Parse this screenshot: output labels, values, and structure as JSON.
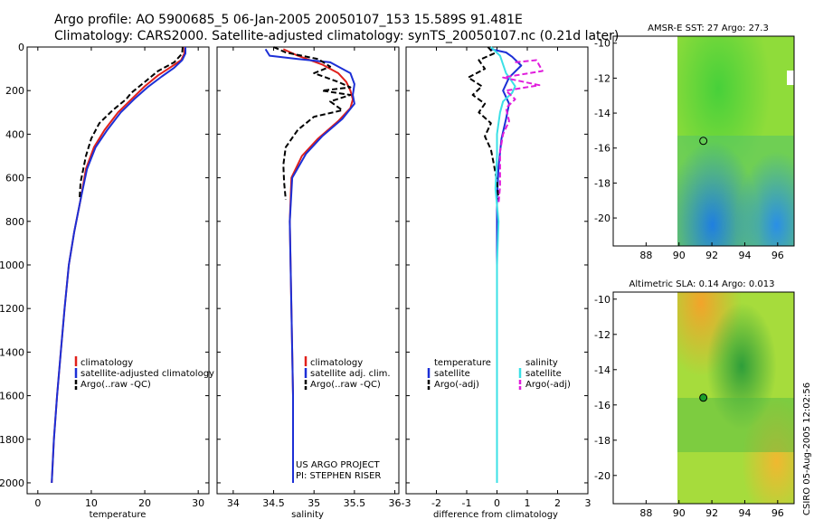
{
  "title": {
    "line1": "Argo profile: AO 5900685_5 06-Jan-2005 20050107_153 15.589S 91.481E",
    "line2": "Climatology: CARS2000. Satellite-adjusted climatology: synTS_20050107.nc (0.21d later)"
  },
  "credit": "CSIRO 05-Aug-2005 12:02:56",
  "colors": {
    "red": "#e0201b",
    "blue": "#1c2fd6",
    "black": "#000000",
    "cyan": "#3be0e6",
    "magenta": "#e01ddc"
  },
  "chart_data": [
    {
      "type": "line",
      "name": "temperature-profile",
      "xlabel": "temperature",
      "xlim": [
        -2,
        32
      ],
      "ylim": [
        0,
        2050
      ],
      "y_inverted": true,
      "xticks": [
        0,
        10,
        20,
        30
      ],
      "yticks": [
        0,
        200,
        400,
        600,
        800,
        1000,
        1200,
        1400,
        1600,
        1800,
        2000
      ],
      "series": [
        {
          "name": "climatology",
          "color": "red",
          "style": "solid",
          "points": [
            [
              27.5,
              0
            ],
            [
              27.4,
              30
            ],
            [
              26.8,
              60
            ],
            [
              25,
              90
            ],
            [
              22.5,
              130
            ],
            [
              20,
              180
            ],
            [
              17.5,
              240
            ],
            [
              15,
              300
            ],
            [
              12.5,
              380
            ],
            [
              10.5,
              460
            ],
            [
              9,
              560
            ],
            [
              8,
              700
            ],
            [
              6.8,
              850
            ],
            [
              5.8,
              1000
            ],
            [
              5,
              1200
            ],
            [
              4.3,
              1400
            ],
            [
              3.6,
              1600
            ],
            [
              3,
              1800
            ],
            [
              2.6,
              2000
            ]
          ]
        },
        {
          "name": "satellite-adjusted climatology",
          "color": "blue",
          "style": "solid",
          "points": [
            [
              27.6,
              0
            ],
            [
              27.6,
              30
            ],
            [
              27,
              60
            ],
            [
              25.5,
              95
            ],
            [
              23.2,
              135
            ],
            [
              20.5,
              185
            ],
            [
              18,
              240
            ],
            [
              15.5,
              300
            ],
            [
              13,
              380
            ],
            [
              10.8,
              460
            ],
            [
              9.2,
              560
            ],
            [
              8,
              700
            ],
            [
              6.8,
              850
            ],
            [
              5.8,
              1000
            ],
            [
              5,
              1200
            ],
            [
              4.3,
              1400
            ],
            [
              3.6,
              1600
            ],
            [
              3,
              1800
            ],
            [
              2.6,
              2000
            ]
          ]
        },
        {
          "name": "Argo(..raw -QC)",
          "color": "black",
          "style": "dashed",
          "points": [
            [
              27.1,
              0
            ],
            [
              27,
              30
            ],
            [
              25.5,
              70
            ],
            [
              22.5,
              110
            ],
            [
              20,
              160
            ],
            [
              17.5,
              210
            ],
            [
              16.5,
              240
            ],
            [
              14,
              290
            ],
            [
              11.5,
              350
            ],
            [
              10,
              420
            ],
            [
              9,
              500
            ],
            [
              8.5,
              560
            ],
            [
              8,
              620
            ],
            [
              7.8,
              700
            ]
          ]
        }
      ],
      "legend": {
        "position": "lower-center",
        "entries": [
          "climatology",
          "satellite-adjusted climatology",
          "Argo(..raw -QC)"
        ]
      }
    },
    {
      "type": "line",
      "name": "salinity-profile",
      "xlabel": "salinity",
      "xlim": [
        33.8,
        36.05
      ],
      "ylim": [
        0,
        2050
      ],
      "y_inverted": true,
      "xticks": [
        34,
        34.5,
        35,
        35.5,
        36
      ],
      "series": [
        {
          "name": "climatology",
          "color": "red",
          "style": "solid",
          "points": [
            [
              34.62,
              10
            ],
            [
              34.8,
              40
            ],
            [
              35.1,
              80
            ],
            [
              35.3,
              120
            ],
            [
              35.4,
              160
            ],
            [
              35.45,
              200
            ],
            [
              35.48,
              240
            ],
            [
              35.45,
              280
            ],
            [
              35.3,
              340
            ],
            [
              35.05,
              420
            ],
            [
              34.85,
              500
            ],
            [
              34.72,
              600
            ],
            [
              34.7,
              800
            ],
            [
              34.71,
              1000
            ],
            [
              34.72,
              1200
            ],
            [
              34.73,
              1400
            ],
            [
              34.74,
              1600
            ],
            [
              34.74,
              1800
            ],
            [
              34.74,
              2000
            ]
          ]
        },
        {
          "name": "satellite adj. clim.",
          "color": "blue",
          "style": "solid",
          "points": [
            [
              34.4,
              10
            ],
            [
              34.45,
              40
            ],
            [
              34.8,
              55
            ],
            [
              35.2,
              70
            ],
            [
              35.45,
              120
            ],
            [
              35.5,
              170
            ],
            [
              35.48,
              220
            ],
            [
              35.5,
              260
            ],
            [
              35.35,
              330
            ],
            [
              35.1,
              410
            ],
            [
              34.9,
              490
            ],
            [
              34.73,
              600
            ],
            [
              34.7,
              800
            ],
            [
              34.71,
              1000
            ],
            [
              34.72,
              1200
            ],
            [
              34.73,
              1400
            ],
            [
              34.74,
              1600
            ],
            [
              34.74,
              1800
            ],
            [
              34.74,
              2000
            ]
          ]
        },
        {
          "name": "Argo(..raw -QC)",
          "color": "black",
          "style": "dashed",
          "points": [
            [
              34.5,
              0
            ],
            [
              34.65,
              25
            ],
            [
              35.05,
              55
            ],
            [
              35.2,
              90
            ],
            [
              35.0,
              120
            ],
            [
              35.3,
              160
            ],
            [
              35.45,
              185
            ],
            [
              35.1,
              200
            ],
            [
              35.45,
              220
            ],
            [
              35.2,
              250
            ],
            [
              35.35,
              290
            ],
            [
              35.0,
              320
            ],
            [
              34.8,
              380
            ],
            [
              34.65,
              460
            ],
            [
              34.62,
              540
            ],
            [
              34.63,
              620
            ],
            [
              34.65,
              700
            ]
          ]
        }
      ],
      "legend": {
        "position": "lower-center",
        "entries": [
          "climatology",
          "satellite adj. clim.",
          "Argo(..raw -QC)"
        ]
      },
      "annotations": [
        "US ARGO PROJECT",
        "PI: STEPHEN RISER"
      ]
    },
    {
      "type": "line",
      "name": "difference-profile",
      "xlabel": "difference from climatology",
      "xlim": [
        -3,
        3
      ],
      "ylim": [
        0,
        2050
      ],
      "y_inverted": true,
      "xticks": [
        -3,
        -2,
        -1,
        0,
        1,
        2,
        3
      ],
      "series": [
        {
          "name": "temperature satellite",
          "color": "blue",
          "style": "solid",
          "points": [
            [
              -0.2,
              10
            ],
            [
              0.3,
              25
            ],
            [
              0.5,
              45
            ],
            [
              0.8,
              85
            ],
            [
              0.4,
              140
            ],
            [
              0.2,
              200
            ],
            [
              0.4,
              260
            ],
            [
              0.3,
              330
            ],
            [
              0.15,
              420
            ],
            [
              0.05,
              550
            ],
            [
              0,
              700
            ],
            [
              0,
              1000
            ],
            [
              0,
              1500
            ],
            [
              0,
              2000
            ]
          ]
        },
        {
          "name": "temperature Argo(-adj)",
          "color": "black",
          "style": "dashed",
          "points": [
            [
              -0.3,
              0
            ],
            [
              -0.1,
              30
            ],
            [
              -0.6,
              60
            ],
            [
              -0.4,
              100
            ],
            [
              -0.95,
              140
            ],
            [
              -0.5,
              180
            ],
            [
              -0.8,
              220
            ],
            [
              -0.4,
              260
            ],
            [
              -0.6,
              300
            ],
            [
              -0.2,
              350
            ],
            [
              -0.4,
              410
            ],
            [
              -0.2,
              470
            ],
            [
              -0.1,
              540
            ],
            [
              0,
              620
            ],
            [
              0.05,
              700
            ]
          ]
        },
        {
          "name": "salinity satellite",
          "color": "cyan",
          "style": "solid",
          "points": [
            [
              -0.2,
              0
            ],
            [
              0.1,
              40
            ],
            [
              0.2,
              80
            ],
            [
              0.3,
              120
            ],
            [
              0.45,
              150
            ],
            [
              0.6,
              180
            ],
            [
              0.5,
              210
            ],
            [
              0.2,
              250
            ],
            [
              0.1,
              300
            ],
            [
              0,
              400
            ],
            [
              0,
              500
            ],
            [
              -0.05,
              650
            ],
            [
              0.05,
              800
            ],
            [
              0,
              1000
            ],
            [
              0,
              1500
            ],
            [
              0,
              2000
            ]
          ]
        },
        {
          "name": "salinity Argo(-adj)",
          "color": "magenta",
          "style": "dashed",
          "points": [
            [
              0.6,
              70
            ],
            [
              1.3,
              60
            ],
            [
              1.5,
              110
            ],
            [
              0.2,
              140
            ],
            [
              1.4,
              175
            ],
            [
              0.3,
              200
            ],
            [
              0.6,
              240
            ],
            [
              0.3,
              280
            ],
            [
              0.4,
              340
            ],
            [
              0.2,
              400
            ],
            [
              0.1,
              480
            ],
            [
              0.1,
              560
            ],
            [
              0.1,
              640
            ],
            [
              0.05,
              720
            ]
          ]
        }
      ],
      "legend": {
        "position": "lower-center",
        "headers": [
          "temperature",
          "salinity"
        ],
        "entries": [
          "satellite",
          "Argo(-adj)",
          "satellite",
          "Argo(-adj)"
        ]
      }
    },
    {
      "type": "heatmap",
      "name": "sst-map",
      "title": "AMSR-E SST: 27 Argo: 27.3",
      "xlim": [
        86,
        97
      ],
      "ylim": [
        -21.6,
        -9.6
      ],
      "xticks": [
        88,
        90,
        92,
        94,
        96
      ],
      "yticks": [
        -10,
        -12,
        -14,
        -16,
        -18,
        -20
      ],
      "data_xlim": [
        90,
        97
      ],
      "marker": {
        "lon": 91.48,
        "lat": -15.59,
        "fill": "none"
      }
    },
    {
      "type": "heatmap",
      "name": "sla-map",
      "title": "Altimetric SLA: 0.14 Argo: 0.013",
      "xlim": [
        86,
        97
      ],
      "ylim": [
        -21.6,
        -9.6
      ],
      "xticks": [
        88,
        90,
        92,
        94,
        96
      ],
      "yticks": [
        -10,
        -12,
        -14,
        -16,
        -18,
        -20
      ],
      "data_xlim": [
        90,
        97
      ],
      "marker": {
        "lon": 91.48,
        "lat": -15.59,
        "fill": "#1a9e2a"
      }
    }
  ]
}
